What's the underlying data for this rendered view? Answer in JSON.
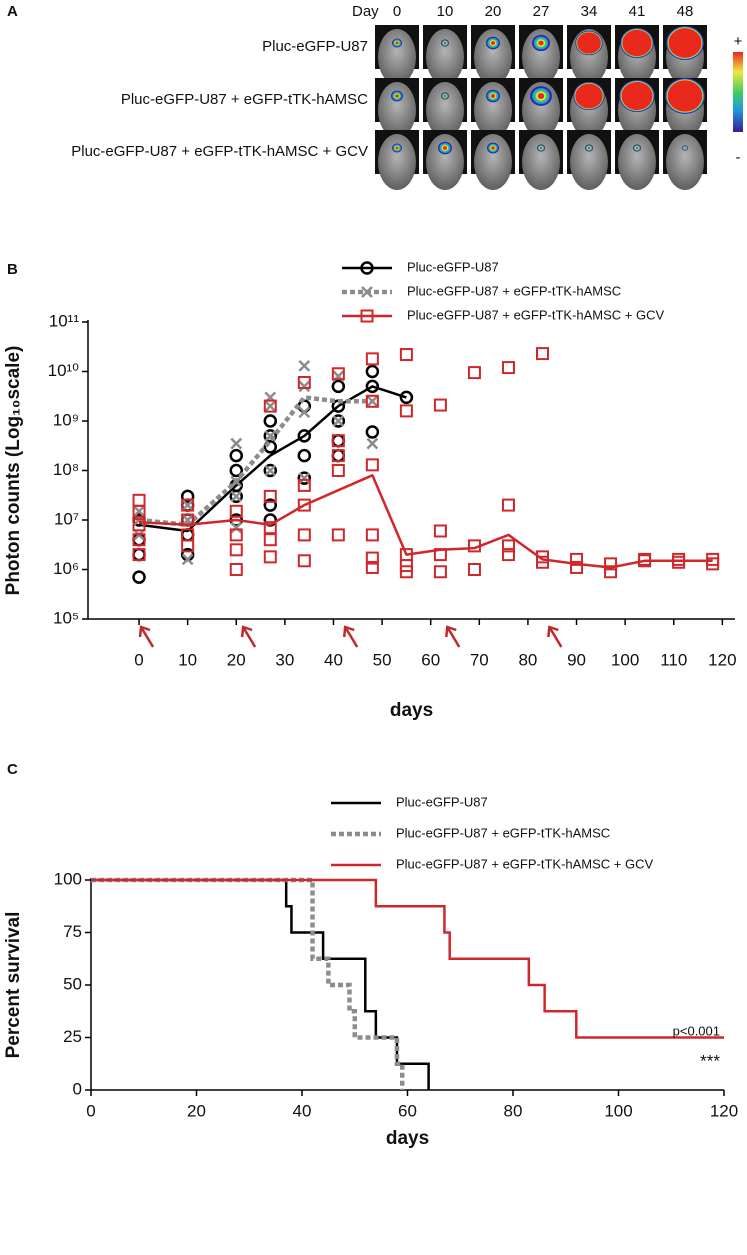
{
  "panel_a": {
    "panel_label": "A",
    "header": "Day",
    "days": [
      0,
      10,
      20,
      27,
      34,
      41,
      48
    ],
    "rows": [
      "Pluc-eGFP-U87",
      "Pluc-eGFP-U87 + eGFP-tTK-hAMSC",
      "Pluc-eGFP-U87 + eGFP-tTK-hAMSC + GCV"
    ],
    "scale_top": "+",
    "scale_bottom": "-"
  },
  "chart_data": [
    {
      "panel_label": "B",
      "type": "line",
      "yscale": "log",
      "ylabel": "Photon counts (Log₁₀scale)",
      "xlabel": "days",
      "xlim": [
        -10.5,
        122.6
      ],
      "xticks": [
        0,
        10,
        20,
        30,
        40,
        50,
        60,
        70,
        80,
        90,
        100,
        110,
        120
      ],
      "ylim": [
        100000.0,
        100000000000.0
      ],
      "yticks": [
        {
          "value": 100000.0,
          "label": "10⁵"
        },
        {
          "value": 1000000.0,
          "label": "10⁶"
        },
        {
          "value": 10000000.0,
          "label": "10⁷"
        },
        {
          "value": 100000000.0,
          "label": "10⁸"
        },
        {
          "value": 1000000000.0,
          "label": "10⁹"
        },
        {
          "value": 10000000000.0,
          "label": "10¹⁰"
        },
        {
          "value": 100000000000.0,
          "label": "10¹¹"
        }
      ],
      "legend_position": "top-right",
      "arrows_x": [
        0,
        21,
        42,
        63,
        84
      ],
      "arrow_color": "#c0282a",
      "series": [
        {
          "name": "Pluc-eGFP-U87",
          "color": "#000000",
          "dash": "solid",
          "marker": "circle",
          "x": [
            0,
            10,
            20,
            27,
            34,
            41,
            48,
            55
          ],
          "values": [
            8000000.0,
            6000000.0,
            50000000.0,
            200000000.0,
            500000000.0,
            2000000000.0,
            5000000000.0,
            3000000000.0
          ],
          "points_x": [
            0,
            0,
            0,
            0,
            10,
            10,
            10,
            10,
            10,
            20,
            20,
            20,
            20,
            20,
            27,
            27,
            27,
            27,
            27,
            27,
            34,
            34,
            34,
            34,
            41,
            41,
            41,
            41,
            41,
            48,
            48,
            48,
            55
          ],
          "points_y": [
            700000.0,
            2000000.0,
            4000000.0,
            10000000.0,
            30000000.0,
            20000000.0,
            10000000.0,
            5000000.0,
            2000000.0,
            200000000.0,
            100000000.0,
            50000000.0,
            30000000.0,
            10000000.0,
            1000000000.0,
            500000000.0,
            300000000.0,
            100000000.0,
            20000000.0,
            10000000.0,
            2000000000.0,
            500000000.0,
            200000000.0,
            70000000.0,
            5000000000.0,
            2000000000.0,
            1000000000.0,
            400000000.0,
            200000000.0,
            10000000000.0,
            5000000000.0,
            600000000.0,
            3000000000.0
          ]
        },
        {
          "name": "Pluc-eGFP-U87 + eGFP-tTK-hAMSC",
          "color": "#8c8c8c",
          "dash": "dotted",
          "marker": "cross",
          "x": [
            0,
            10,
            20,
            27,
            34,
            41,
            48
          ],
          "values": [
            10000000.0,
            8000000.0,
            60000000.0,
            400000000.0,
            3000000000.0,
            2500000000.0,
            2500000000.0
          ],
          "points_x": [
            0,
            0,
            0,
            10,
            10,
            10,
            20,
            20,
            20,
            20,
            27,
            27,
            27,
            27,
            34,
            34,
            34,
            34,
            41,
            41,
            48,
            48
          ],
          "points_y": [
            10000000.0,
            5000000.0,
            15000000.0,
            1600000.0,
            10000000.0,
            20000000.0,
            350000000.0,
            60000000.0,
            30000000.0,
            7000000.0,
            3000000000.0,
            2000000000.0,
            500000000.0,
            100000000.0,
            13000000000.0,
            5000000000.0,
            1500000000.0,
            70000000.0,
            8000000000.0,
            1000000000.0,
            2500000000.0,
            350000000.0
          ]
        },
        {
          "name": "Pluc-eGFP-U87 + eGFP-tTK-hAMSC + GCV",
          "color": "#d0282a",
          "dash": "solid",
          "marker": "square",
          "x": [
            0,
            10,
            20,
            27,
            34,
            41,
            48,
            55,
            62,
            69,
            76,
            83,
            90,
            97,
            104,
            111,
            118
          ],
          "values": [
            9000000.0,
            8000000.0,
            10000000.0,
            8000000.0,
            20000000.0,
            40000000.0,
            80000000.0,
            2000000.0,
            2500000.0,
            2700000.0,
            5000000.0,
            1600000.0,
            1300000.0,
            1100000.0,
            1500000.0,
            1500000.0,
            1500000.0
          ],
          "points_x": [
            0,
            0,
            0,
            0,
            0,
            10,
            10,
            10,
            10,
            20,
            20,
            20,
            20,
            27,
            27,
            27,
            27,
            27,
            34,
            34,
            34,
            34,
            34,
            41,
            41,
            41,
            41,
            41,
            48,
            48,
            48,
            48,
            48,
            48,
            55,
            55,
            55,
            55,
            55,
            62,
            62,
            62,
            62,
            69,
            69,
            69,
            76,
            76,
            76,
            76,
            83,
            83,
            83,
            90,
            90,
            97,
            97,
            104,
            104,
            111,
            111,
            118,
            118
          ],
          "points_y": [
            25000000.0,
            15000000.0,
            8000000.0,
            4000000.0,
            2000000.0,
            20000000.0,
            10000000.0,
            5000000.0,
            3000000.0,
            15000000.0,
            5000000.0,
            2500000.0,
            1000000.0,
            2000000000.0,
            30000000.0,
            7000000.0,
            4000000.0,
            1800000.0,
            6000000000.0,
            50000000.0,
            20000000.0,
            5000000.0,
            1500000.0,
            9000000000.0,
            400000000.0,
            200000000.0,
            100000000.0,
            5000000.0,
            18000000000.0,
            2500000000.0,
            130000000.0,
            5000000.0,
            1700000.0,
            1100000.0,
            22000000000.0,
            1600000000.0,
            2000000.0,
            1200000.0,
            900000.0,
            2100000000.0,
            6000000.0,
            2000000.0,
            900000.0,
            9500000000.0,
            3000000.0,
            1000000.0,
            12000000000.0,
            20000000.0,
            3000000.0,
            2000000.0,
            23000000000.0,
            1800000.0,
            1400000.0,
            1600000.0,
            1100000.0,
            1300000.0,
            900000.0,
            1600000.0,
            1500000.0,
            1600000.0,
            1400000.0,
            1600000.0,
            1300000.0
          ]
        }
      ]
    },
    {
      "panel_label": "C",
      "type": "step",
      "ylabel": "Percent survival",
      "xlabel": "days",
      "xlim": [
        0,
        120
      ],
      "xticks": [
        0,
        20,
        40,
        60,
        80,
        100,
        120
      ],
      "ylim": [
        0,
        100
      ],
      "yticks": [
        0,
        25,
        50,
        75,
        100
      ],
      "legend_position": "top-right",
      "pvalue_text": "p<0.001",
      "significance": "***",
      "series": [
        {
          "name": "Pluc-eGFP-U87",
          "color": "#000000",
          "dash": "solid",
          "x": [
            0,
            37,
            38,
            44,
            52,
            54,
            58,
            64
          ],
          "values": [
            100,
            87.5,
            75,
            62.5,
            37.5,
            25,
            12.5,
            0
          ]
        },
        {
          "name": "Pluc-eGFP-U87 + eGFP-tTK-hAMSC",
          "color": "#8c8c8c",
          "dash": "dotted",
          "x": [
            0,
            42,
            45,
            49,
            50,
            58,
            59
          ],
          "values": [
            100,
            62.5,
            50,
            37.5,
            25,
            12.5,
            0
          ]
        },
        {
          "name": "Pluc-eGFP-U87 + eGFP-tTK-hAMSC + GCV",
          "color": "#d0282a",
          "dash": "solid",
          "x": [
            0,
            54,
            67,
            68,
            83,
            86,
            92,
            120
          ],
          "values": [
            100,
            87.5,
            75,
            62.5,
            50,
            37.5,
            25,
            25
          ]
        }
      ]
    }
  ]
}
